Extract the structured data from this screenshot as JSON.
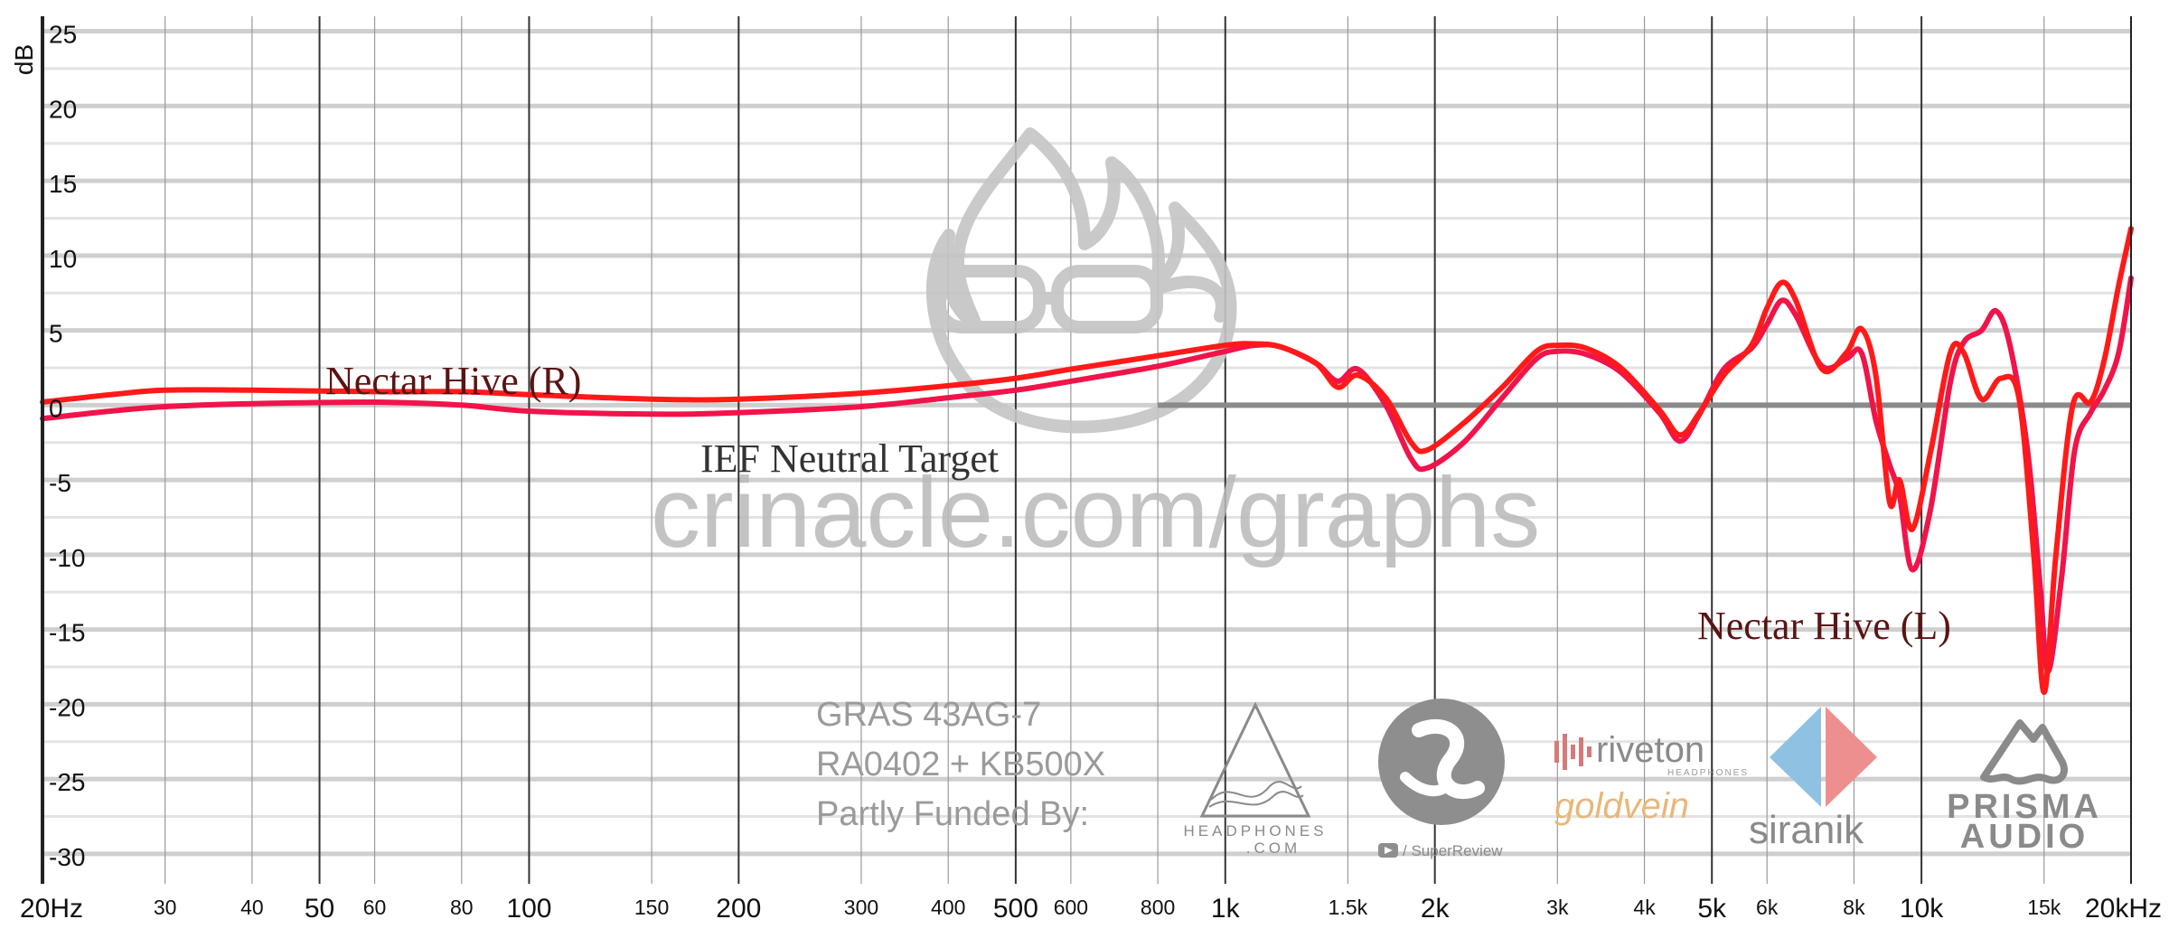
{
  "chart_data": {
    "type": "line",
    "ylabel": "dB",
    "xscale": "log",
    "xlim": [
      20,
      20000
    ],
    "ylim": [
      -32,
      26
    ],
    "yticks": [
      25,
      20,
      15,
      10,
      5,
      0,
      -5,
      -10,
      -15,
      -20,
      -25,
      -30
    ],
    "xticks_major": [
      {
        "v": 20,
        "label": "20Hz"
      },
      {
        "v": 50,
        "label": "50"
      },
      {
        "v": 100,
        "label": "100"
      },
      {
        "v": 200,
        "label": "200"
      },
      {
        "v": 500,
        "label": "500"
      },
      {
        "v": 1000,
        "label": "1k"
      },
      {
        "v": 2000,
        "label": "2k"
      },
      {
        "v": 5000,
        "label": "5k"
      },
      {
        "v": 10000,
        "label": "10k"
      },
      {
        "v": 20000,
        "label": "20kHz"
      }
    ],
    "xticks_minor": [
      {
        "v": 30,
        "label": "30"
      },
      {
        "v": 40,
        "label": "40"
      },
      {
        "v": 60,
        "label": "60"
      },
      {
        "v": 80,
        "label": "80"
      },
      {
        "v": 150,
        "label": "150"
      },
      {
        "v": 300,
        "label": "300"
      },
      {
        "v": 400,
        "label": "400"
      },
      {
        "v": 600,
        "label": "600"
      },
      {
        "v": 800,
        "label": "800"
      },
      {
        "v": 1500,
        "label": "1.5k"
      },
      {
        "v": 3000,
        "label": "3k"
      },
      {
        "v": 4000,
        "label": "4k"
      },
      {
        "v": 6000,
        "label": "6k"
      },
      {
        "v": 8000,
        "label": "8k"
      },
      {
        "v": 15000,
        "label": "15k"
      }
    ],
    "target": {
      "name": "IEF Neutral Target",
      "value": 0,
      "color": "#8a8a8a"
    },
    "series": [
      {
        "name": "Nectar Hive (R)",
        "color": "#ff1a1a",
        "points": [
          [
            20,
            0.2
          ],
          [
            25,
            0.7
          ],
          [
            30,
            1.0
          ],
          [
            40,
            1.0
          ],
          [
            60,
            0.9
          ],
          [
            80,
            0.9
          ],
          [
            100,
            0.7
          ],
          [
            150,
            0.4
          ],
          [
            200,
            0.4
          ],
          [
            300,
            0.8
          ],
          [
            400,
            1.3
          ],
          [
            500,
            1.8
          ],
          [
            600,
            2.4
          ],
          [
            800,
            3.3
          ],
          [
            1000,
            4.0
          ],
          [
            1100,
            4.1
          ],
          [
            1200,
            3.9
          ],
          [
            1350,
            2.8
          ],
          [
            1450,
            1.2
          ],
          [
            1550,
            2.0
          ],
          [
            1700,
            0.5
          ],
          [
            1850,
            -2.5
          ],
          [
            1950,
            -3.0
          ],
          [
            2200,
            -1.2
          ],
          [
            2500,
            1.2
          ],
          [
            2800,
            3.6
          ],
          [
            3000,
            4.0
          ],
          [
            3300,
            3.8
          ],
          [
            3700,
            2.5
          ],
          [
            4200,
            -0.3
          ],
          [
            4500,
            -2.0
          ],
          [
            4800,
            -0.5
          ],
          [
            5200,
            2.0
          ],
          [
            5700,
            4.0
          ],
          [
            6000,
            6.5
          ],
          [
            6300,
            8.2
          ],
          [
            6600,
            7.0
          ],
          [
            7200,
            2.4
          ],
          [
            7800,
            3.5
          ],
          [
            8200,
            5.1
          ],
          [
            8600,
            2.0
          ],
          [
            9000,
            -6.5
          ],
          [
            9300,
            -5.0
          ],
          [
            9700,
            -8.3
          ],
          [
            10300,
            -3.2
          ],
          [
            11000,
            3.5
          ],
          [
            11500,
            3.5
          ],
          [
            12200,
            0.4
          ],
          [
            13000,
            1.8
          ],
          [
            13800,
            0.5
          ],
          [
            14500,
            -10.0
          ],
          [
            15000,
            -19.2
          ],
          [
            15600,
            -10.0
          ],
          [
            16500,
            0.0
          ],
          [
            17500,
            0.2
          ],
          [
            18300,
            3.0
          ],
          [
            19200,
            8.0
          ],
          [
            20000,
            11.8
          ]
        ]
      },
      {
        "name": "Nectar Hive (L)",
        "color": "#f0144a",
        "points": [
          [
            20,
            -0.9
          ],
          [
            25,
            -0.4
          ],
          [
            30,
            -0.1
          ],
          [
            40,
            0.1
          ],
          [
            60,
            0.2
          ],
          [
            80,
            0.0
          ],
          [
            100,
            -0.4
          ],
          [
            150,
            -0.6
          ],
          [
            200,
            -0.5
          ],
          [
            300,
            -0.1
          ],
          [
            400,
            0.5
          ],
          [
            500,
            1.0
          ],
          [
            600,
            1.6
          ],
          [
            800,
            2.6
          ],
          [
            1000,
            3.6
          ],
          [
            1100,
            4.0
          ],
          [
            1200,
            3.9
          ],
          [
            1350,
            2.8
          ],
          [
            1450,
            1.6
          ],
          [
            1550,
            2.4
          ],
          [
            1700,
            0.0
          ],
          [
            1850,
            -3.6
          ],
          [
            1950,
            -4.2
          ],
          [
            2200,
            -2.5
          ],
          [
            2500,
            0.5
          ],
          [
            2800,
            3.1
          ],
          [
            3000,
            3.6
          ],
          [
            3300,
            3.4
          ],
          [
            3700,
            2.2
          ],
          [
            4200,
            -0.5
          ],
          [
            4500,
            -2.4
          ],
          [
            4800,
            -0.6
          ],
          [
            5200,
            2.4
          ],
          [
            5700,
            3.8
          ],
          [
            6000,
            5.4
          ],
          [
            6300,
            7.0
          ],
          [
            6600,
            6.0
          ],
          [
            7200,
            2.6
          ],
          [
            7800,
            3.1
          ],
          [
            8200,
            3.5
          ],
          [
            8600,
            -1.0
          ],
          [
            9000,
            -4.0
          ],
          [
            9300,
            -6.0
          ],
          [
            9700,
            -11.0
          ],
          [
            10300,
            -7.0
          ],
          [
            11000,
            1.5
          ],
          [
            11500,
            4.2
          ],
          [
            12200,
            5.0
          ],
          [
            12800,
            6.3
          ],
          [
            13400,
            4.0
          ],
          [
            14200,
            -3.0
          ],
          [
            14800,
            -12.0
          ],
          [
            15200,
            -17.8
          ],
          [
            15900,
            -11.5
          ],
          [
            16600,
            -3.0
          ],
          [
            17500,
            -0.5
          ],
          [
            18300,
            1.0
          ],
          [
            19200,
            3.5
          ],
          [
            20000,
            8.5
          ]
        ]
      }
    ],
    "annotations": {
      "label_r": "Nectar Hive (R)",
      "label_l": "Nectar Hive (L)",
      "label_target": "IEF Neutral Target",
      "watermark": "crinacle.com/graphs",
      "rig_line1": "GRAS 43AG-7",
      "rig_line2": "RA0402 + KB500X",
      "rig_line3": "Partly Funded By:"
    },
    "sponsors": {
      "headphones_line1": "HEADPHONES",
      "headphones_line2": ".COM",
      "superreview": "/ SuperReview",
      "riveton": "riveton",
      "riveton_sub": "HEADPHONES",
      "goldvein": "goldvein",
      "sironik": "siranik",
      "prisma_line1": "PRISMA",
      "prisma_line2": "AUDIO"
    },
    "colors": {
      "grid_major": "#cfcfcf",
      "grid_minor": "#e3e3e3",
      "axis": "#222222",
      "watermark": "#bdbdbd"
    }
  }
}
